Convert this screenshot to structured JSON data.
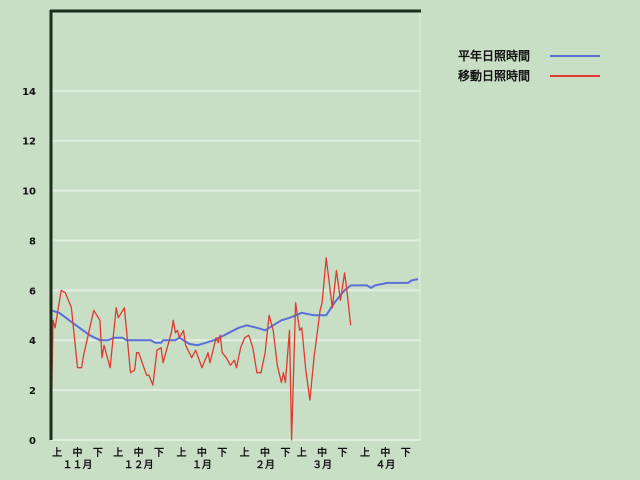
{
  "chart_data": {
    "type": "line",
    "title": "",
    "xlabel": "",
    "ylabel": "",
    "ylim": [
      0,
      17.2
    ],
    "yticks": [
      "0",
      "2",
      "4",
      "6",
      "8",
      "10",
      "12",
      "14"
    ],
    "grid": true,
    "legend_placement": "top-right",
    "x_range": [
      "11-01",
      "04-30"
    ],
    "months": [
      {
        "label": "１１月",
        "start": "11-01",
        "dekads": [
          "上",
          "中",
          "下"
        ]
      },
      {
        "label": "１２月",
        "start": "12-01",
        "dekads": [
          "上",
          "中",
          "下"
        ]
      },
      {
        "label": "１月",
        "start": "01-01",
        "dekads": [
          "上",
          "中",
          "下"
        ]
      },
      {
        "label": "２月",
        "start": "02-01",
        "dekads": [
          "上",
          "中",
          "下"
        ]
      },
      {
        "label": "３月",
        "start": "03-01",
        "dekads": [
          "上",
          "中",
          "下"
        ]
      },
      {
        "label": "４月",
        "start": "04-01",
        "dekads": [
          "上",
          "中",
          "下"
        ]
      }
    ],
    "colors": {
      "background": "#c8dfc6",
      "grid": "#e2efe0",
      "axis": "#1c2e1c"
    },
    "series": [
      {
        "name": "平年日照時間",
        "color": "#5a6fd8",
        "points": [
          [
            "11-01",
            5.2
          ],
          [
            "11-05",
            5.1
          ],
          [
            "11-10",
            4.8
          ],
          [
            "11-15",
            4.5
          ],
          [
            "11-20",
            4.2
          ],
          [
            "11-25",
            4.0
          ],
          [
            "11-29",
            4.0
          ],
          [
            "12-02",
            4.1
          ],
          [
            "12-06",
            4.1
          ],
          [
            "12-08",
            4.0
          ],
          [
            "12-20",
            4.0
          ],
          [
            "12-22",
            3.9
          ],
          [
            "12-25",
            3.9
          ],
          [
            "12-26",
            4.0
          ],
          [
            "01-01",
            4.0
          ],
          [
            "01-03",
            4.1
          ],
          [
            "01-08",
            3.85
          ],
          [
            "01-12",
            3.8
          ],
          [
            "01-16",
            3.9
          ],
          [
            "01-20",
            4.0
          ],
          [
            "01-25",
            4.2
          ],
          [
            "02-01",
            4.5
          ],
          [
            "02-05",
            4.6
          ],
          [
            "02-10",
            4.5
          ],
          [
            "02-14",
            4.4
          ],
          [
            "02-18",
            4.6
          ],
          [
            "02-22",
            4.8
          ],
          [
            "02-26",
            4.9
          ],
          [
            "03-01",
            5.0
          ],
          [
            "03-04",
            5.1
          ],
          [
            "03-10",
            5.0
          ],
          [
            "03-16",
            5.0
          ],
          [
            "03-20",
            5.5
          ],
          [
            "03-25",
            6.0
          ],
          [
            "03-28",
            6.2
          ],
          [
            "04-05",
            6.2
          ],
          [
            "04-07",
            6.1
          ],
          [
            "04-09",
            6.2
          ],
          [
            "04-15",
            6.3
          ],
          [
            "04-25",
            6.3
          ],
          [
            "04-27",
            6.4
          ],
          [
            "04-30",
            6.45
          ]
        ]
      },
      {
        "name": "移動日照時間",
        "color": "#e03a30",
        "points": [
          [
            "11-01",
            0
          ],
          [
            "11-02",
            4.8
          ],
          [
            "11-03",
            4.5
          ],
          [
            "11-06",
            6.0
          ],
          [
            "11-08",
            5.9
          ],
          [
            "11-11",
            5.3
          ],
          [
            "11-14",
            2.9
          ],
          [
            "11-16",
            2.9
          ],
          [
            "11-17",
            3.4
          ],
          [
            "11-22",
            5.2
          ],
          [
            "11-25",
            4.8
          ],
          [
            "11-26",
            3.3
          ],
          [
            "11-27",
            3.8
          ],
          [
            "11-30",
            2.9
          ],
          [
            "12-03",
            5.3
          ],
          [
            "12-04",
            4.9
          ],
          [
            "12-07",
            5.3
          ],
          [
            "12-10",
            2.7
          ],
          [
            "12-12",
            2.8
          ],
          [
            "12-13",
            3.5
          ],
          [
            "12-14",
            3.5
          ],
          [
            "12-17",
            2.8
          ],
          [
            "12-18",
            2.6
          ],
          [
            "12-19",
            2.6
          ],
          [
            "12-21",
            2.2
          ],
          [
            "12-23",
            3.6
          ],
          [
            "12-25",
            3.7
          ],
          [
            "12-26",
            3.1
          ],
          [
            "12-28",
            3.7
          ],
          [
            "12-30",
            4.3
          ],
          [
            "12-31",
            4.8
          ],
          [
            "01-01",
            4.3
          ],
          [
            "01-02",
            4.4
          ],
          [
            "01-03",
            4.1
          ],
          [
            "01-05",
            4.4
          ],
          [
            "01-06",
            3.8
          ],
          [
            "01-09",
            3.3
          ],
          [
            "01-11",
            3.6
          ],
          [
            "01-14",
            2.9
          ],
          [
            "01-17",
            3.5
          ],
          [
            "01-18",
            3.1
          ],
          [
            "01-21",
            4.1
          ],
          [
            "01-22",
            3.9
          ],
          [
            "01-23",
            4.2
          ],
          [
            "01-24",
            3.5
          ],
          [
            "01-26",
            3.3
          ],
          [
            "01-28",
            3.0
          ],
          [
            "01-30",
            3.2
          ],
          [
            "01-31",
            2.9
          ],
          [
            "02-02",
            3.7
          ],
          [
            "02-04",
            4.1
          ],
          [
            "02-06",
            4.2
          ],
          [
            "02-08",
            3.7
          ],
          [
            "02-10",
            2.7
          ],
          [
            "02-12",
            2.7
          ],
          [
            "02-14",
            3.5
          ],
          [
            "02-16",
            5.0
          ],
          [
            "02-18",
            4.4
          ],
          [
            "02-20",
            3.0
          ],
          [
            "02-22",
            2.3
          ],
          [
            "02-23",
            2.7
          ],
          [
            "02-24",
            2.3
          ],
          [
            "02-26",
            4.4
          ],
          [
            "02-27",
            0
          ],
          [
            "03-01",
            5.5
          ],
          [
            "03-03",
            4.4
          ],
          [
            "03-04",
            4.5
          ],
          [
            "03-06",
            2.8
          ],
          [
            "03-08",
            1.6
          ],
          [
            "03-10",
            3.3
          ],
          [
            "03-13",
            5.2
          ],
          [
            "03-14",
            5.5
          ],
          [
            "03-16",
            7.3
          ],
          [
            "03-19",
            5.3
          ],
          [
            "03-21",
            6.8
          ],
          [
            "03-23",
            5.6
          ],
          [
            "03-25",
            6.7
          ],
          [
            "03-26",
            6.1
          ],
          [
            "03-28",
            4.6
          ]
        ]
      }
    ]
  }
}
